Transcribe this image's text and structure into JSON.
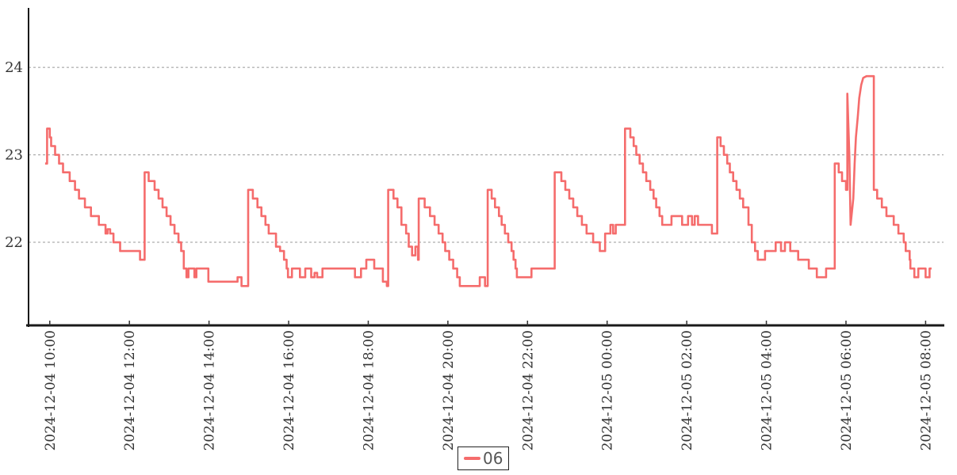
{
  "chart": {
    "background": "#ffffff",
    "line_color": "#f56c6c",
    "axis_color": "#1a1a1a",
    "grid_color": "#999999",
    "label_color": "#333333"
  },
  "legend": {
    "series_label": "06",
    "marker_color": "#f56c6c"
  },
  "chart_data": {
    "type": "line",
    "title": "",
    "xlabel": "",
    "ylabel": "",
    "line_style": "step-after",
    "grid": "dashed-horizontal",
    "legend_position": "bottom-center",
    "x_unit": "minutes since 2024-12-04 10:00",
    "x_range": [
      -32,
      1347
    ],
    "y_range": [
      21.05,
      24.68
    ],
    "y_ticks": [
      22,
      23,
      24
    ],
    "x_ticks": [
      {
        "m": 0,
        "label": "2024-12-04 10:00"
      },
      {
        "m": 120,
        "label": "2024-12-04 12:00"
      },
      {
        "m": 240,
        "label": "2024-12-04 14:00"
      },
      {
        "m": 360,
        "label": "2024-12-04 16:00"
      },
      {
        "m": 480,
        "label": "2024-12-04 18:00"
      },
      {
        "m": 600,
        "label": "2024-12-04 20:00"
      },
      {
        "m": 720,
        "label": "2024-12-04 22:00"
      },
      {
        "m": 840,
        "label": "2024-12-05 00:00"
      },
      {
        "m": 960,
        "label": "2024-12-05 02:00"
      },
      {
        "m": 1080,
        "label": "2024-12-05 04:00"
      },
      {
        "m": 1200,
        "label": "2024-12-05 06:00"
      },
      {
        "m": 1320,
        "label": "2024-12-05 08:00"
      }
    ],
    "series": [
      {
        "name": "06",
        "color": "#f56c6c",
        "points": [
          [
            -7,
            22.9
          ],
          [
            -4,
            23.3
          ],
          [
            0,
            23.2
          ],
          [
            2,
            23.1
          ],
          [
            8,
            23.0
          ],
          [
            14,
            22.9
          ],
          [
            20,
            22.8
          ],
          [
            30,
            22.7
          ],
          [
            38,
            22.6
          ],
          [
            44,
            22.5
          ],
          [
            53,
            22.4
          ],
          [
            62,
            22.3
          ],
          [
            74,
            22.2
          ],
          [
            84,
            22.1
          ],
          [
            87,
            22.15
          ],
          [
            91,
            22.1
          ],
          [
            96,
            22.0
          ],
          [
            106,
            21.9
          ],
          [
            136,
            21.8
          ],
          [
            143,
            22.8
          ],
          [
            149,
            22.7
          ],
          [
            158,
            22.6
          ],
          [
            164,
            22.5
          ],
          [
            170,
            22.4
          ],
          [
            176,
            22.3
          ],
          [
            182,
            22.2
          ],
          [
            188,
            22.1
          ],
          [
            194,
            22.0
          ],
          [
            198,
            21.9
          ],
          [
            202,
            21.7
          ],
          [
            206,
            21.6
          ],
          [
            209,
            21.7
          ],
          [
            218,
            21.6
          ],
          [
            221,
            21.7
          ],
          [
            239,
            21.55
          ],
          [
            283,
            21.6
          ],
          [
            289,
            21.5
          ],
          [
            299,
            22.6
          ],
          [
            306,
            22.5
          ],
          [
            313,
            22.4
          ],
          [
            319,
            22.3
          ],
          [
            325,
            22.2
          ],
          [
            330,
            22.1
          ],
          [
            341,
            21.95
          ],
          [
            347,
            21.9
          ],
          [
            353,
            21.8
          ],
          [
            357,
            21.7
          ],
          [
            359,
            21.6
          ],
          [
            365,
            21.7
          ],
          [
            377,
            21.6
          ],
          [
            385,
            21.7
          ],
          [
            394,
            21.6
          ],
          [
            399,
            21.65
          ],
          [
            403,
            21.6
          ],
          [
            411,
            21.7
          ],
          [
            460,
            21.6
          ],
          [
            469,
            21.7
          ],
          [
            477,
            21.8
          ],
          [
            489,
            21.7
          ],
          [
            502,
            21.55
          ],
          [
            508,
            21.5
          ],
          [
            510,
            22.6
          ],
          [
            518,
            22.5
          ],
          [
            524,
            22.4
          ],
          [
            530,
            22.2
          ],
          [
            537,
            22.1
          ],
          [
            541,
            21.95
          ],
          [
            546,
            21.85
          ],
          [
            551,
            21.95
          ],
          [
            555,
            21.8
          ],
          [
            556,
            22.5
          ],
          [
            565,
            22.4
          ],
          [
            573,
            22.3
          ],
          [
            580,
            22.2
          ],
          [
            586,
            22.1
          ],
          [
            592,
            22.0
          ],
          [
            596,
            21.9
          ],
          [
            602,
            21.8
          ],
          [
            608,
            21.7
          ],
          [
            614,
            21.6
          ],
          [
            618,
            21.5
          ],
          [
            648,
            21.6
          ],
          [
            656,
            21.5
          ],
          [
            660,
            22.6
          ],
          [
            666,
            22.5
          ],
          [
            671,
            22.4
          ],
          [
            677,
            22.3
          ],
          [
            681,
            22.2
          ],
          [
            686,
            22.1
          ],
          [
            691,
            22.0
          ],
          [
            696,
            21.9
          ],
          [
            699,
            21.8
          ],
          [
            702,
            21.7
          ],
          [
            704,
            21.6
          ],
          [
            726,
            21.7
          ],
          [
            761,
            22.8
          ],
          [
            771,
            22.7
          ],
          [
            777,
            22.6
          ],
          [
            783,
            22.5
          ],
          [
            789,
            22.4
          ],
          [
            795,
            22.3
          ],
          [
            802,
            22.2
          ],
          [
            809,
            22.1
          ],
          [
            819,
            22.0
          ],
          [
            829,
            21.9
          ],
          [
            837,
            22.1
          ],
          [
            845,
            22.2
          ],
          [
            849,
            22.1
          ],
          [
            853,
            22.2
          ],
          [
            867,
            23.3
          ],
          [
            875,
            23.2
          ],
          [
            880,
            23.1
          ],
          [
            884,
            23.0
          ],
          [
            889,
            22.9
          ],
          [
            894,
            22.8
          ],
          [
            899,
            22.7
          ],
          [
            905,
            22.6
          ],
          [
            910,
            22.5
          ],
          [
            914,
            22.4
          ],
          [
            919,
            22.3
          ],
          [
            923,
            22.2
          ],
          [
            937,
            22.3
          ],
          [
            953,
            22.2
          ],
          [
            962,
            22.3
          ],
          [
            968,
            22.2
          ],
          [
            972,
            22.3
          ],
          [
            977,
            22.2
          ],
          [
            998,
            22.1
          ],
          [
            1006,
            23.2
          ],
          [
            1011,
            23.1
          ],
          [
            1016,
            23.0
          ],
          [
            1021,
            22.9
          ],
          [
            1025,
            22.8
          ],
          [
            1030,
            22.7
          ],
          [
            1035,
            22.6
          ],
          [
            1040,
            22.5
          ],
          [
            1045,
            22.4
          ],
          [
            1053,
            22.2
          ],
          [
            1058,
            22.0
          ],
          [
            1063,
            21.9
          ],
          [
            1067,
            21.8
          ],
          [
            1078,
            21.9
          ],
          [
            1094,
            22.0
          ],
          [
            1102,
            21.9
          ],
          [
            1108,
            22.0
          ],
          [
            1116,
            21.9
          ],
          [
            1128,
            21.8
          ],
          [
            1144,
            21.7
          ],
          [
            1156,
            21.6
          ],
          [
            1170,
            21.7
          ],
          [
            1183,
            22.9
          ],
          [
            1189,
            22.8
          ],
          [
            1194,
            22.7
          ],
          [
            1200,
            22.6
          ],
          [
            1202,
            23.7
          ],
          [
            1205,
            23.0,
            1
          ],
          [
            1207,
            22.2,
            1
          ],
          [
            1211,
            22.5,
            1
          ],
          [
            1213,
            22.9,
            1
          ],
          [
            1215,
            23.2,
            1
          ],
          [
            1218,
            23.45,
            1
          ],
          [
            1220,
            23.65,
            1
          ],
          [
            1223,
            23.8,
            1
          ],
          [
            1226,
            23.88,
            1
          ],
          [
            1231,
            23.9,
            1
          ],
          [
            1242,
            22.6
          ],
          [
            1247,
            22.5
          ],
          [
            1254,
            22.4
          ],
          [
            1261,
            22.3
          ],
          [
            1272,
            22.2
          ],
          [
            1279,
            22.1
          ],
          [
            1287,
            22.0
          ],
          [
            1290,
            21.9
          ],
          [
            1296,
            21.8
          ],
          [
            1297,
            21.7
          ],
          [
            1303,
            21.6
          ],
          [
            1309,
            21.7
          ],
          [
            1320,
            21.6
          ],
          [
            1326,
            21.7
          ],
          [
            1329,
            21.7
          ]
        ]
      }
    ]
  }
}
